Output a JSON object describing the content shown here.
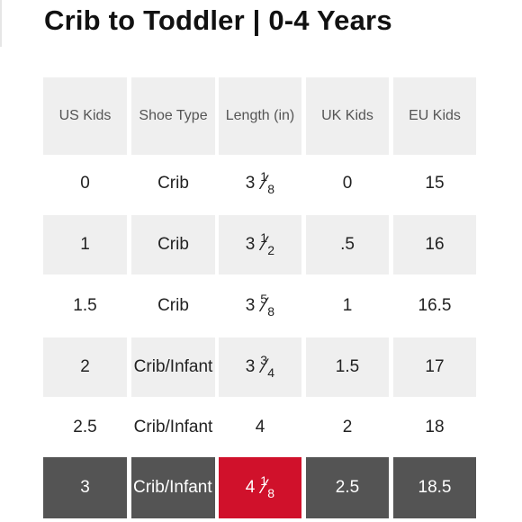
{
  "title": "Crib to Toddler | 0-4 Years",
  "colors": {
    "header_bg": "#efefef",
    "highlight_row_bg": "#545454",
    "highlight_cell_bg": "#d0112b"
  },
  "headers": [
    "US Kids",
    "Shoe Type",
    "Length (in)",
    "UK Kids",
    "EU Kids"
  ],
  "rows": [
    {
      "us": "0",
      "type": "Crib",
      "length_whole": "3",
      "length_num": "1",
      "length_den": "8",
      "uk": "0",
      "eu": "15"
    },
    {
      "us": "1",
      "type": "Crib",
      "length_whole": "3",
      "length_num": "1",
      "length_den": "2",
      "uk": ".5",
      "eu": "16"
    },
    {
      "us": "1.5",
      "type": "Crib",
      "length_whole": "3",
      "length_num": "5",
      "length_den": "8",
      "uk": "1",
      "eu": "16.5"
    },
    {
      "us": "2",
      "type": "Crib/Infant",
      "length_whole": "3",
      "length_num": "3",
      "length_den": "4",
      "uk": "1.5",
      "eu": "17"
    },
    {
      "us": "2.5",
      "type": "Crib/Infant",
      "length_whole": "4",
      "length_num": "",
      "length_den": "",
      "uk": "2",
      "eu": "18"
    },
    {
      "us": "3",
      "type": "Crib/Infant",
      "length_whole": "4",
      "length_num": "1",
      "length_den": "8",
      "uk": "2.5",
      "eu": "18.5"
    }
  ]
}
